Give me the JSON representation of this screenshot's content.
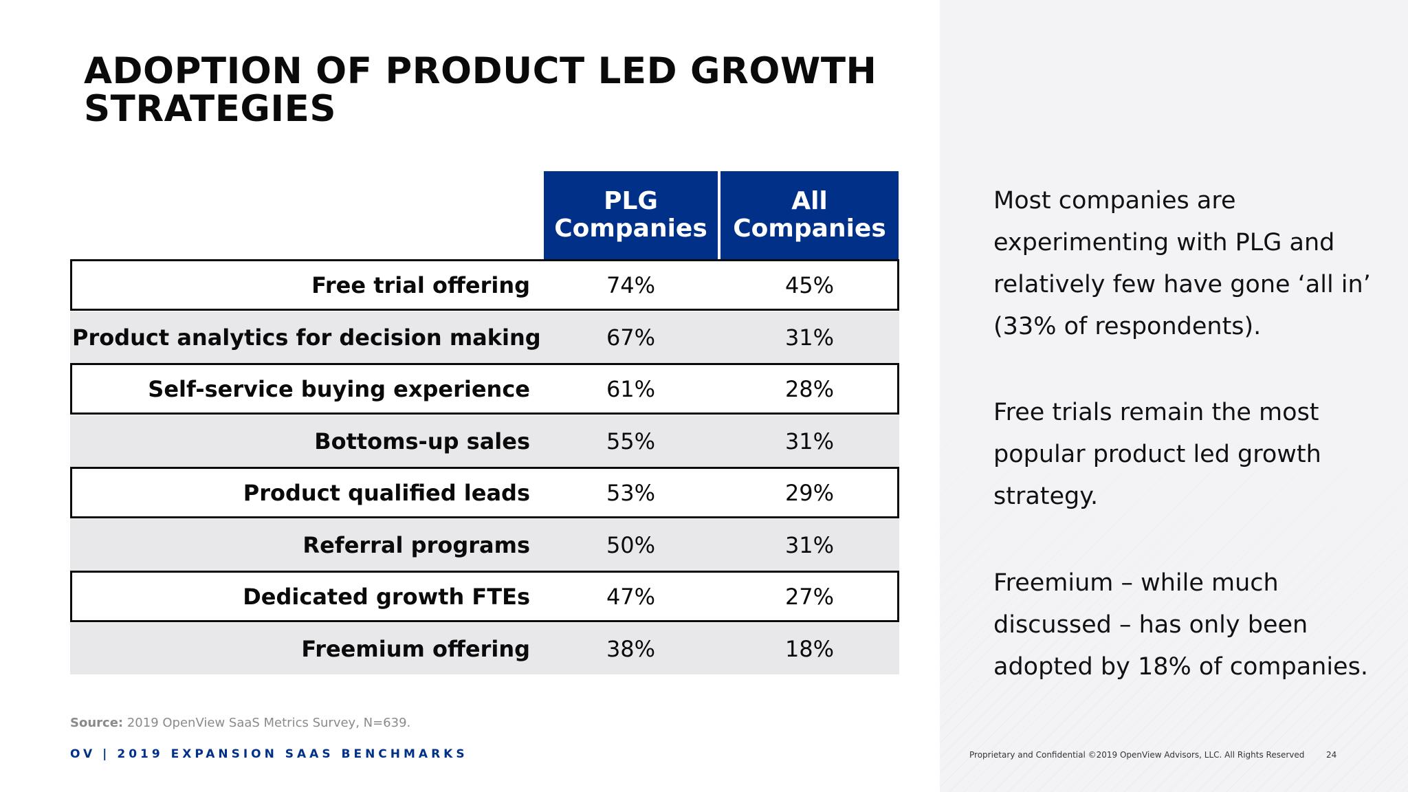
{
  "slide": {
    "title_line1": "ADOPTION OF PRODUCT LED GROWTH",
    "title_line2": "STRATEGIES"
  },
  "table": {
    "headers": {
      "plg": "PLG Companies",
      "all": "All Companies"
    },
    "rows": [
      {
        "label": "Free trial offering",
        "plg": "74%",
        "all": "45%"
      },
      {
        "label": "Product analytics for decision making",
        "plg": "67%",
        "all": "31%"
      },
      {
        "label": "Self-service buying experience",
        "plg": "61%",
        "all": "28%"
      },
      {
        "label": "Bottoms-up sales",
        "plg": "55%",
        "all": "31%"
      },
      {
        "label": "Product qualified leads",
        "plg": "53%",
        "all": "29%"
      },
      {
        "label": "Referral programs",
        "plg": "50%",
        "all": "31%"
      },
      {
        "label": "Dedicated growth FTEs",
        "plg": "47%",
        "all": "27%"
      },
      {
        "label": "Freemium offering",
        "plg": "38%",
        "all": "18%"
      }
    ]
  },
  "source": {
    "label": "Source:",
    "text": "2019 OpenView SaaS Metrics Survey, N=639."
  },
  "footer": {
    "brand": "OV",
    "separator": "|",
    "title": "2019 EXPANSION SAAS BENCHMARKS",
    "legal": "Proprietary and Confidential ©2019 OpenView Advisors, LLC. All Rights Reserved",
    "page_number": "24"
  },
  "commentary": {
    "p1": "Most companies are experimenting with PLG and relatively few have gone ‘all in’ (33% of respondents).",
    "p2": "Free trials remain the most popular product led growth strategy.",
    "p3": "Freemium – while much discussed – has only been adopted by 18% of companies."
  },
  "colors": {
    "header_bg": "#003087",
    "shaded_row": "#e8e8ea",
    "brand_blue": "#003087"
  }
}
